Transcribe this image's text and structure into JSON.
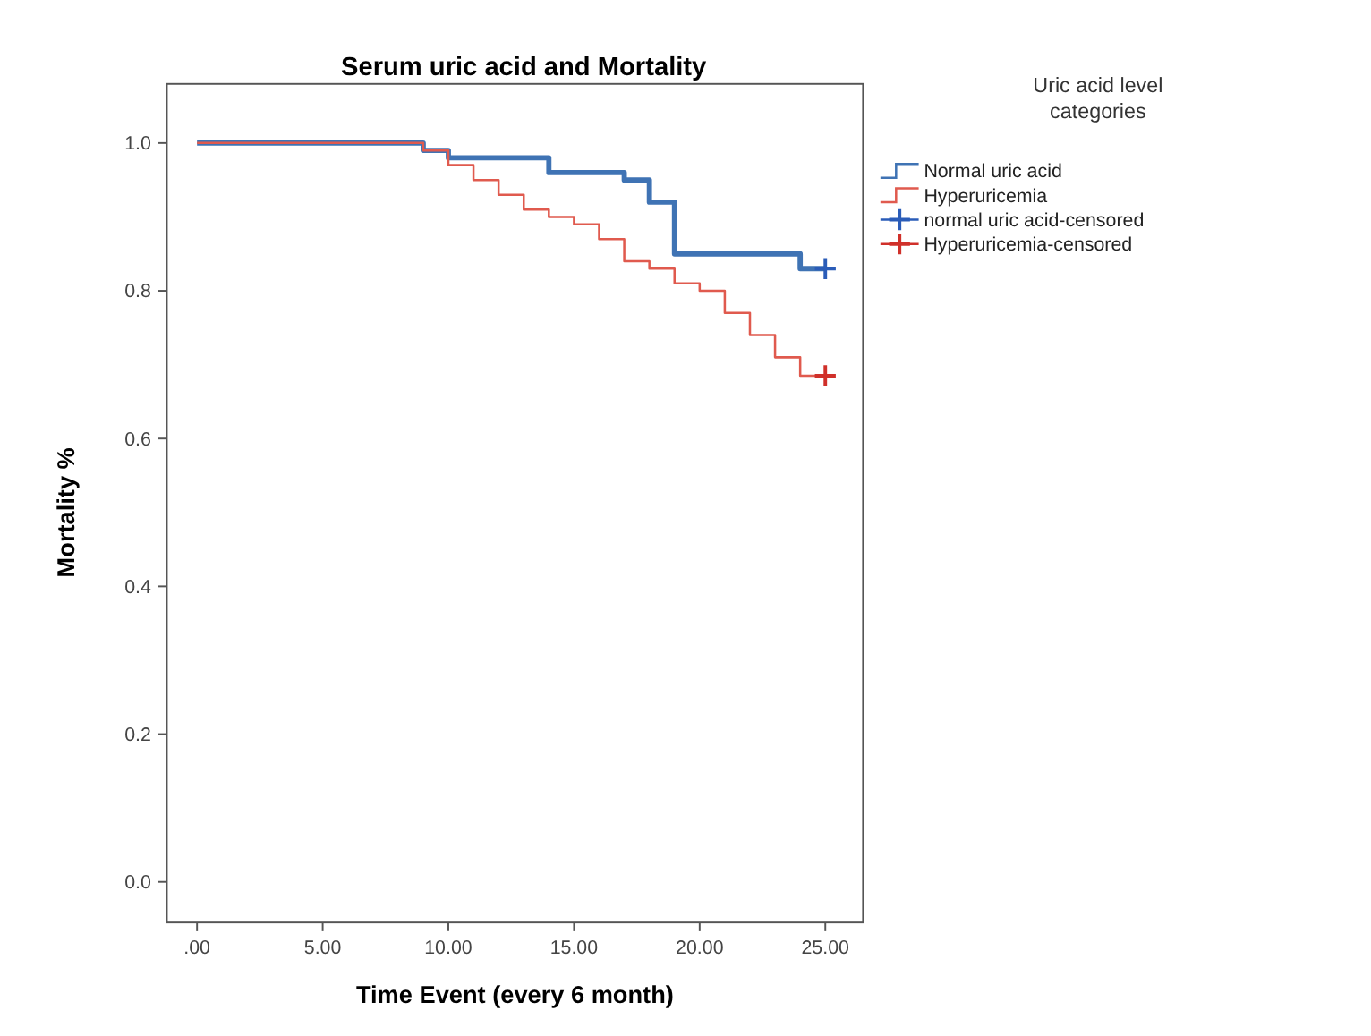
{
  "chart_data": {
    "type": "step",
    "title": "Serum uric acid and Mortality",
    "xlabel": "Time Event (every 6 month)",
    "ylabel": "Mortality %",
    "legend_title": "Uric acid level categories",
    "legend": "right",
    "grid": false,
    "xlim": [
      -1.2,
      26.5
    ],
    "ylim": [
      -0.055,
      1.08
    ],
    "xticks": [
      {
        "value": 0,
        "label": ".00"
      },
      {
        "value": 5,
        "label": "5.00"
      },
      {
        "value": 10,
        "label": "10.00"
      },
      {
        "value": 15,
        "label": "15.00"
      },
      {
        "value": 20,
        "label": "20.00"
      },
      {
        "value": 25,
        "label": "25.00"
      }
    ],
    "yticks": [
      {
        "value": 0,
        "label": "0.0"
      },
      {
        "value": 0.2,
        "label": "0.2"
      },
      {
        "value": 0.4,
        "label": "0.4"
      },
      {
        "value": 0.6,
        "label": "0.6"
      },
      {
        "value": 0.8,
        "label": "0.8"
      },
      {
        "value": 1,
        "label": "1.0"
      }
    ],
    "series": [
      {
        "name": "Normal uric acid",
        "color": "#3f73b4",
        "x": [
          0,
          9,
          10,
          14,
          17,
          18,
          19,
          24,
          25
        ],
        "values": [
          1,
          0.99,
          0.98,
          0.96,
          0.95,
          0.92,
          0.85,
          0.83,
          0.83
        ]
      },
      {
        "name": "Hyperuricemia",
        "color": "#e05a4e",
        "x": [
          0,
          9,
          10,
          11,
          12,
          13,
          14,
          15,
          16,
          17,
          18,
          19,
          20,
          21,
          22,
          23,
          24,
          25
        ],
        "values": [
          1,
          0.99,
          0.97,
          0.95,
          0.93,
          0.91,
          0.9,
          0.89,
          0.87,
          0.84,
          0.83,
          0.81,
          0.8,
          0.77,
          0.74,
          0.71,
          0.685,
          0.685
        ]
      },
      {
        "name": "normal uric acid-censored",
        "type": "scatter",
        "marker": "cross",
        "color": "#2a5cb8",
        "x": [
          25
        ],
        "values": [
          0.83
        ]
      },
      {
        "name": "Hyperuricemia-censored",
        "type": "scatter",
        "marker": "cross",
        "color": "#d0302a",
        "x": [
          25
        ],
        "values": [
          0.685
        ]
      }
    ]
  }
}
